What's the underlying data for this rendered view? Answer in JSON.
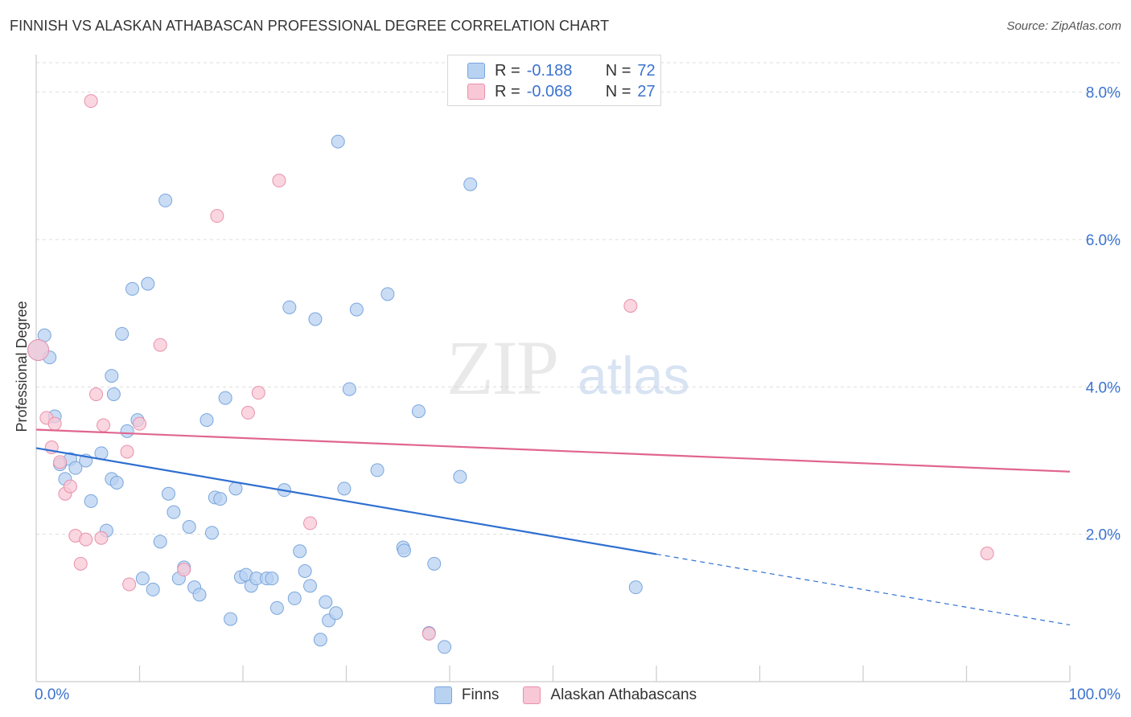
{
  "title": "FINNISH VS ALASKAN ATHABASCAN PROFESSIONAL DEGREE CORRELATION CHART",
  "source": "Source: ZipAtlas.com",
  "watermark": {
    "zip": "ZIP",
    "atlas": "atlas"
  },
  "legend_top": {
    "rows": [
      {
        "r_label": "R =",
        "r_value": "-0.188",
        "n_label": "N =",
        "n_value": "72"
      },
      {
        "r_label": "R =",
        "r_value": "-0.068",
        "n_label": "N =",
        "n_value": "27"
      }
    ]
  },
  "legend_bottom": {
    "finns": "Finns",
    "alaskan": "Alaskan Athabascans"
  },
  "colors": {
    "finns_fill": "#b8d2f2",
    "finns_stroke": "#7aa6dc",
    "finns_line": "#2f6fd0",
    "alaskan_fill": "#f8c8d6",
    "alaskan_stroke": "#e990ab",
    "alaskan_line": "#e0668f",
    "tick_text": "#3b73cf",
    "grid": "#dddddd"
  },
  "chart_data": {
    "type": "scatter",
    "ylabel": "Professional Degree",
    "xlabel": "",
    "xlim": [
      0,
      100
    ],
    "ylim": [
      0,
      8.4
    ],
    "y_ticks": [
      {
        "value": 2,
        "label": "2.0%"
      },
      {
        "value": 4,
        "label": "4.0%"
      },
      {
        "value": 6,
        "label": "6.0%"
      },
      {
        "value": 8,
        "label": "8.0%"
      }
    ],
    "x_tick_labels": [
      {
        "value": 0,
        "label": "0.0%"
      },
      {
        "value": 100,
        "label": "100.0%"
      }
    ],
    "grid": true,
    "series": [
      {
        "name": "Finns",
        "points": [
          [
            0.2,
            4.5
          ],
          [
            0.8,
            4.7
          ],
          [
            1.3,
            4.4
          ],
          [
            1.8,
            3.6
          ],
          [
            2.3,
            2.95
          ],
          [
            2.8,
            2.75
          ],
          [
            3.3,
            3.02
          ],
          [
            3.8,
            2.9
          ],
          [
            4.8,
            3.0
          ],
          [
            5.3,
            2.45
          ],
          [
            6.3,
            3.1
          ],
          [
            6.8,
            2.05
          ],
          [
            7.3,
            4.15
          ],
          [
            7.5,
            3.9
          ],
          [
            7.3,
            2.75
          ],
          [
            7.8,
            2.7
          ],
          [
            8.3,
            4.72
          ],
          [
            8.8,
            3.4
          ],
          [
            9.3,
            5.33
          ],
          [
            9.8,
            3.55
          ],
          [
            10.3,
            1.4
          ],
          [
            10.8,
            5.4
          ],
          [
            11.3,
            1.25
          ],
          [
            12.0,
            1.9
          ],
          [
            12.5,
            6.53
          ],
          [
            12.8,
            2.55
          ],
          [
            13.3,
            2.3
          ],
          [
            13.8,
            1.4
          ],
          [
            14.3,
            1.55
          ],
          [
            14.8,
            2.1
          ],
          [
            15.3,
            1.28
          ],
          [
            15.8,
            1.18
          ],
          [
            16.5,
            3.55
          ],
          [
            17.0,
            2.02
          ],
          [
            17.3,
            2.5
          ],
          [
            17.8,
            2.48
          ],
          [
            18.3,
            3.85
          ],
          [
            18.8,
            0.85
          ],
          [
            19.3,
            2.62
          ],
          [
            19.8,
            1.42
          ],
          [
            20.3,
            1.45
          ],
          [
            20.8,
            1.3
          ],
          [
            21.3,
            1.4
          ],
          [
            22.3,
            1.4
          ],
          [
            22.8,
            1.4
          ],
          [
            23.3,
            1.0
          ],
          [
            24.0,
            2.6
          ],
          [
            24.5,
            5.08
          ],
          [
            25.0,
            1.13
          ],
          [
            25.5,
            1.77
          ],
          [
            26.0,
            1.5
          ],
          [
            26.5,
            1.3
          ],
          [
            27.0,
            4.92
          ],
          [
            27.5,
            0.57
          ],
          [
            28.0,
            1.08
          ],
          [
            28.3,
            0.83
          ],
          [
            29.0,
            0.93
          ],
          [
            29.8,
            2.62
          ],
          [
            30.3,
            3.97
          ],
          [
            31.0,
            5.05
          ],
          [
            33.0,
            2.87
          ],
          [
            34.0,
            5.26
          ],
          [
            35.5,
            1.82
          ],
          [
            35.6,
            1.78
          ],
          [
            37.0,
            3.67
          ],
          [
            38.0,
            0.66
          ],
          [
            38.5,
            1.6
          ],
          [
            39.5,
            0.47
          ],
          [
            41.0,
            2.78
          ],
          [
            42.0,
            6.75
          ],
          [
            58.0,
            1.28
          ],
          [
            29.2,
            7.33
          ]
        ]
      },
      {
        "name": "Alaskan Athabascans",
        "points": [
          [
            0.2,
            4.5
          ],
          [
            1.0,
            3.58
          ],
          [
            1.5,
            3.18
          ],
          [
            1.8,
            3.5
          ],
          [
            2.3,
            2.98
          ],
          [
            2.8,
            2.55
          ],
          [
            3.3,
            2.65
          ],
          [
            3.8,
            1.98
          ],
          [
            4.3,
            1.6
          ],
          [
            4.8,
            1.93
          ],
          [
            5.3,
            7.88
          ],
          [
            5.8,
            3.9
          ],
          [
            6.3,
            1.95
          ],
          [
            6.5,
            3.48
          ],
          [
            8.8,
            3.12
          ],
          [
            9.0,
            1.32
          ],
          [
            10.0,
            3.5
          ],
          [
            12.0,
            4.57
          ],
          [
            14.3,
            1.52
          ],
          [
            17.5,
            6.32
          ],
          [
            20.5,
            3.65
          ],
          [
            21.5,
            3.92
          ],
          [
            23.5,
            6.8
          ],
          [
            26.5,
            2.15
          ],
          [
            38.0,
            0.65
          ],
          [
            57.5,
            5.1
          ],
          [
            92.0,
            1.74
          ]
        ]
      }
    ],
    "trend_lines": [
      {
        "series": "Finns",
        "solid": [
          [
            0,
            3.17
          ],
          [
            60,
            1.73
          ]
        ],
        "dashed": [
          [
            60,
            1.73
          ],
          [
            100,
            0.77
          ]
        ]
      },
      {
        "series": "Alaskan Athabascans",
        "solid": [
          [
            0,
            3.42
          ],
          [
            100,
            2.85
          ]
        ]
      }
    ]
  }
}
